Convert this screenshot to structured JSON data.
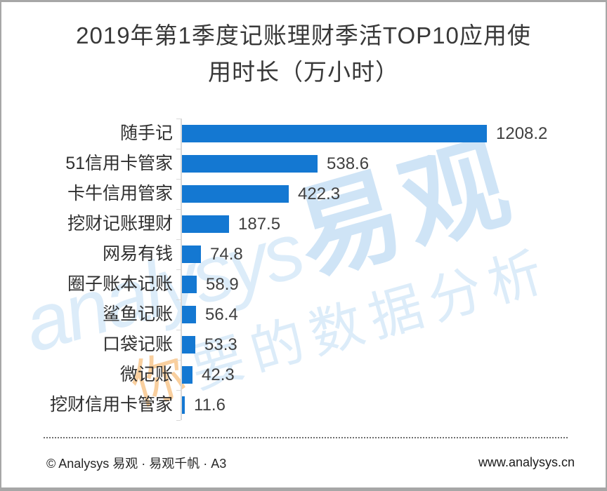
{
  "title": {
    "line1": "2019年第1季度记账理财季活TOP10应用使",
    "line2": "用时长（万小时）"
  },
  "chart_data": {
    "type": "bar",
    "orientation": "horizontal",
    "title": "2019年第1季度记账理财季活TOP10应用使用时长（万小时）",
    "categories": [
      "随手记",
      "51信用卡管家",
      "卡牛信用管家",
      "挖财记账理财",
      "网易有钱",
      "圈子账本记账",
      "鲨鱼记账",
      "口袋记账",
      "微记账",
      "挖财信用卡管家"
    ],
    "values": [
      1208.2,
      538.6,
      422.3,
      187.5,
      74.8,
      58.9,
      56.4,
      53.3,
      42.3,
      11.6
    ],
    "xlabel": "",
    "ylabel": "",
    "grid": false,
    "legend": false,
    "value_labels": true,
    "bar_color": "#1478d2"
  },
  "watermark": {
    "script": "analysys",
    "brand": "易观",
    "tagline_first": "你",
    "tagline_rest": "要的数据分析"
  },
  "footer": {
    "left": "© Analysys 易观 · 易观千帆 · A3",
    "right": "www.analysys.cn"
  },
  "colors": {
    "bar": "#1478d2",
    "axis": "#d9d9d9",
    "border": "#a7a7a7",
    "title_text": "#383838",
    "label_text": "#303030",
    "watermark_blue": "#dcecf9",
    "watermark_orange": "#f9cf9e"
  }
}
